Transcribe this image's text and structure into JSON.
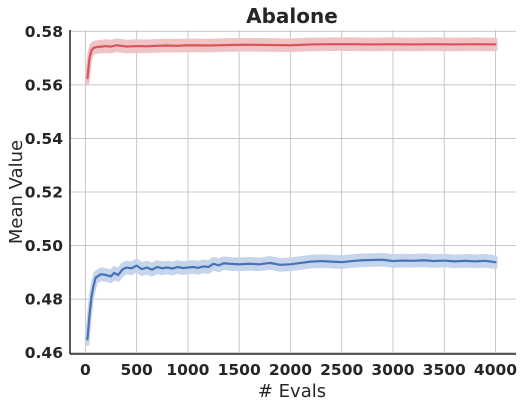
{
  "chart_data": {
    "type": "line",
    "title": "Abalone",
    "xlabel": "# Evals",
    "ylabel": "Mean Value",
    "xlim": [
      -150,
      4200
    ],
    "ylim": [
      0.4595,
      0.5805
    ],
    "xticks": [
      "0",
      "500",
      "1000",
      "1500",
      "2000",
      "2500",
      "3000",
      "3500",
      "4000"
    ],
    "yticks": [
      "0.46",
      "0.48",
      "0.50",
      "0.52",
      "0.54",
      "0.56",
      "0.58"
    ],
    "grid": true,
    "series": [
      {
        "color": "#d9535b",
        "band_color": "#f0c4c6",
        "band": 0.0018,
        "points": [
          [
            20,
            0.5625
          ],
          [
            40,
            0.57
          ],
          [
            60,
            0.573
          ],
          [
            80,
            0.5738
          ],
          [
            120,
            0.5742
          ],
          [
            160,
            0.5743
          ],
          [
            200,
            0.5745
          ],
          [
            250,
            0.5743
          ],
          [
            300,
            0.5748
          ],
          [
            350,
            0.5746
          ],
          [
            400,
            0.5743
          ],
          [
            500,
            0.5745
          ],
          [
            600,
            0.5744
          ],
          [
            700,
            0.5746
          ],
          [
            800,
            0.5747
          ],
          [
            900,
            0.5746
          ],
          [
            1000,
            0.5748
          ],
          [
            1200,
            0.5747
          ],
          [
            1400,
            0.5749
          ],
          [
            1600,
            0.575
          ],
          [
            1800,
            0.5749
          ],
          [
            2000,
            0.5748
          ],
          [
            2200,
            0.5751
          ],
          [
            2400,
            0.5752
          ],
          [
            2600,
            0.5752
          ],
          [
            2800,
            0.5751
          ],
          [
            3000,
            0.5752
          ],
          [
            3200,
            0.5751
          ],
          [
            3400,
            0.5752
          ],
          [
            3600,
            0.5751
          ],
          [
            3800,
            0.5752
          ],
          [
            4000,
            0.5751
          ]
        ]
      },
      {
        "color": "#4872b6",
        "band_color": "#c6d4ec",
        "band": 0.0018,
        "points": [
          [
            20,
            0.465
          ],
          [
            40,
            0.474
          ],
          [
            60,
            0.481
          ],
          [
            80,
            0.485
          ],
          [
            100,
            0.488
          ],
          [
            150,
            0.4893
          ],
          [
            200,
            0.489
          ],
          [
            250,
            0.4885
          ],
          [
            280,
            0.4898
          ],
          [
            320,
            0.489
          ],
          [
            360,
            0.491
          ],
          [
            400,
            0.4918
          ],
          [
            450,
            0.4915
          ],
          [
            500,
            0.4925
          ],
          [
            550,
            0.4912
          ],
          [
            600,
            0.4918
          ],
          [
            650,
            0.491
          ],
          [
            700,
            0.492
          ],
          [
            750,
            0.4915
          ],
          [
            800,
            0.4918
          ],
          [
            850,
            0.4914
          ],
          [
            900,
            0.492
          ],
          [
            950,
            0.4916
          ],
          [
            1000,
            0.4918
          ],
          [
            1050,
            0.492
          ],
          [
            1100,
            0.4917
          ],
          [
            1150,
            0.4922
          ],
          [
            1200,
            0.492
          ],
          [
            1250,
            0.4932
          ],
          [
            1300,
            0.4926
          ],
          [
            1350,
            0.4934
          ],
          [
            1400,
            0.4932
          ],
          [
            1500,
            0.493
          ],
          [
            1600,
            0.4932
          ],
          [
            1700,
            0.493
          ],
          [
            1800,
            0.4935
          ],
          [
            1900,
            0.4928
          ],
          [
            2000,
            0.493
          ],
          [
            2100,
            0.4935
          ],
          [
            2200,
            0.494
          ],
          [
            2300,
            0.4942
          ],
          [
            2400,
            0.494
          ],
          [
            2500,
            0.4938
          ],
          [
            2600,
            0.4942
          ],
          [
            2700,
            0.4945
          ],
          [
            2800,
            0.4946
          ],
          [
            2900,
            0.4947
          ],
          [
            3000,
            0.4942
          ],
          [
            3100,
            0.4944
          ],
          [
            3200,
            0.4943
          ],
          [
            3300,
            0.4945
          ],
          [
            3400,
            0.4942
          ],
          [
            3500,
            0.4944
          ],
          [
            3600,
            0.4941
          ],
          [
            3700,
            0.4943
          ],
          [
            3800,
            0.4941
          ],
          [
            3900,
            0.4943
          ],
          [
            4000,
            0.4938
          ]
        ]
      }
    ]
  }
}
